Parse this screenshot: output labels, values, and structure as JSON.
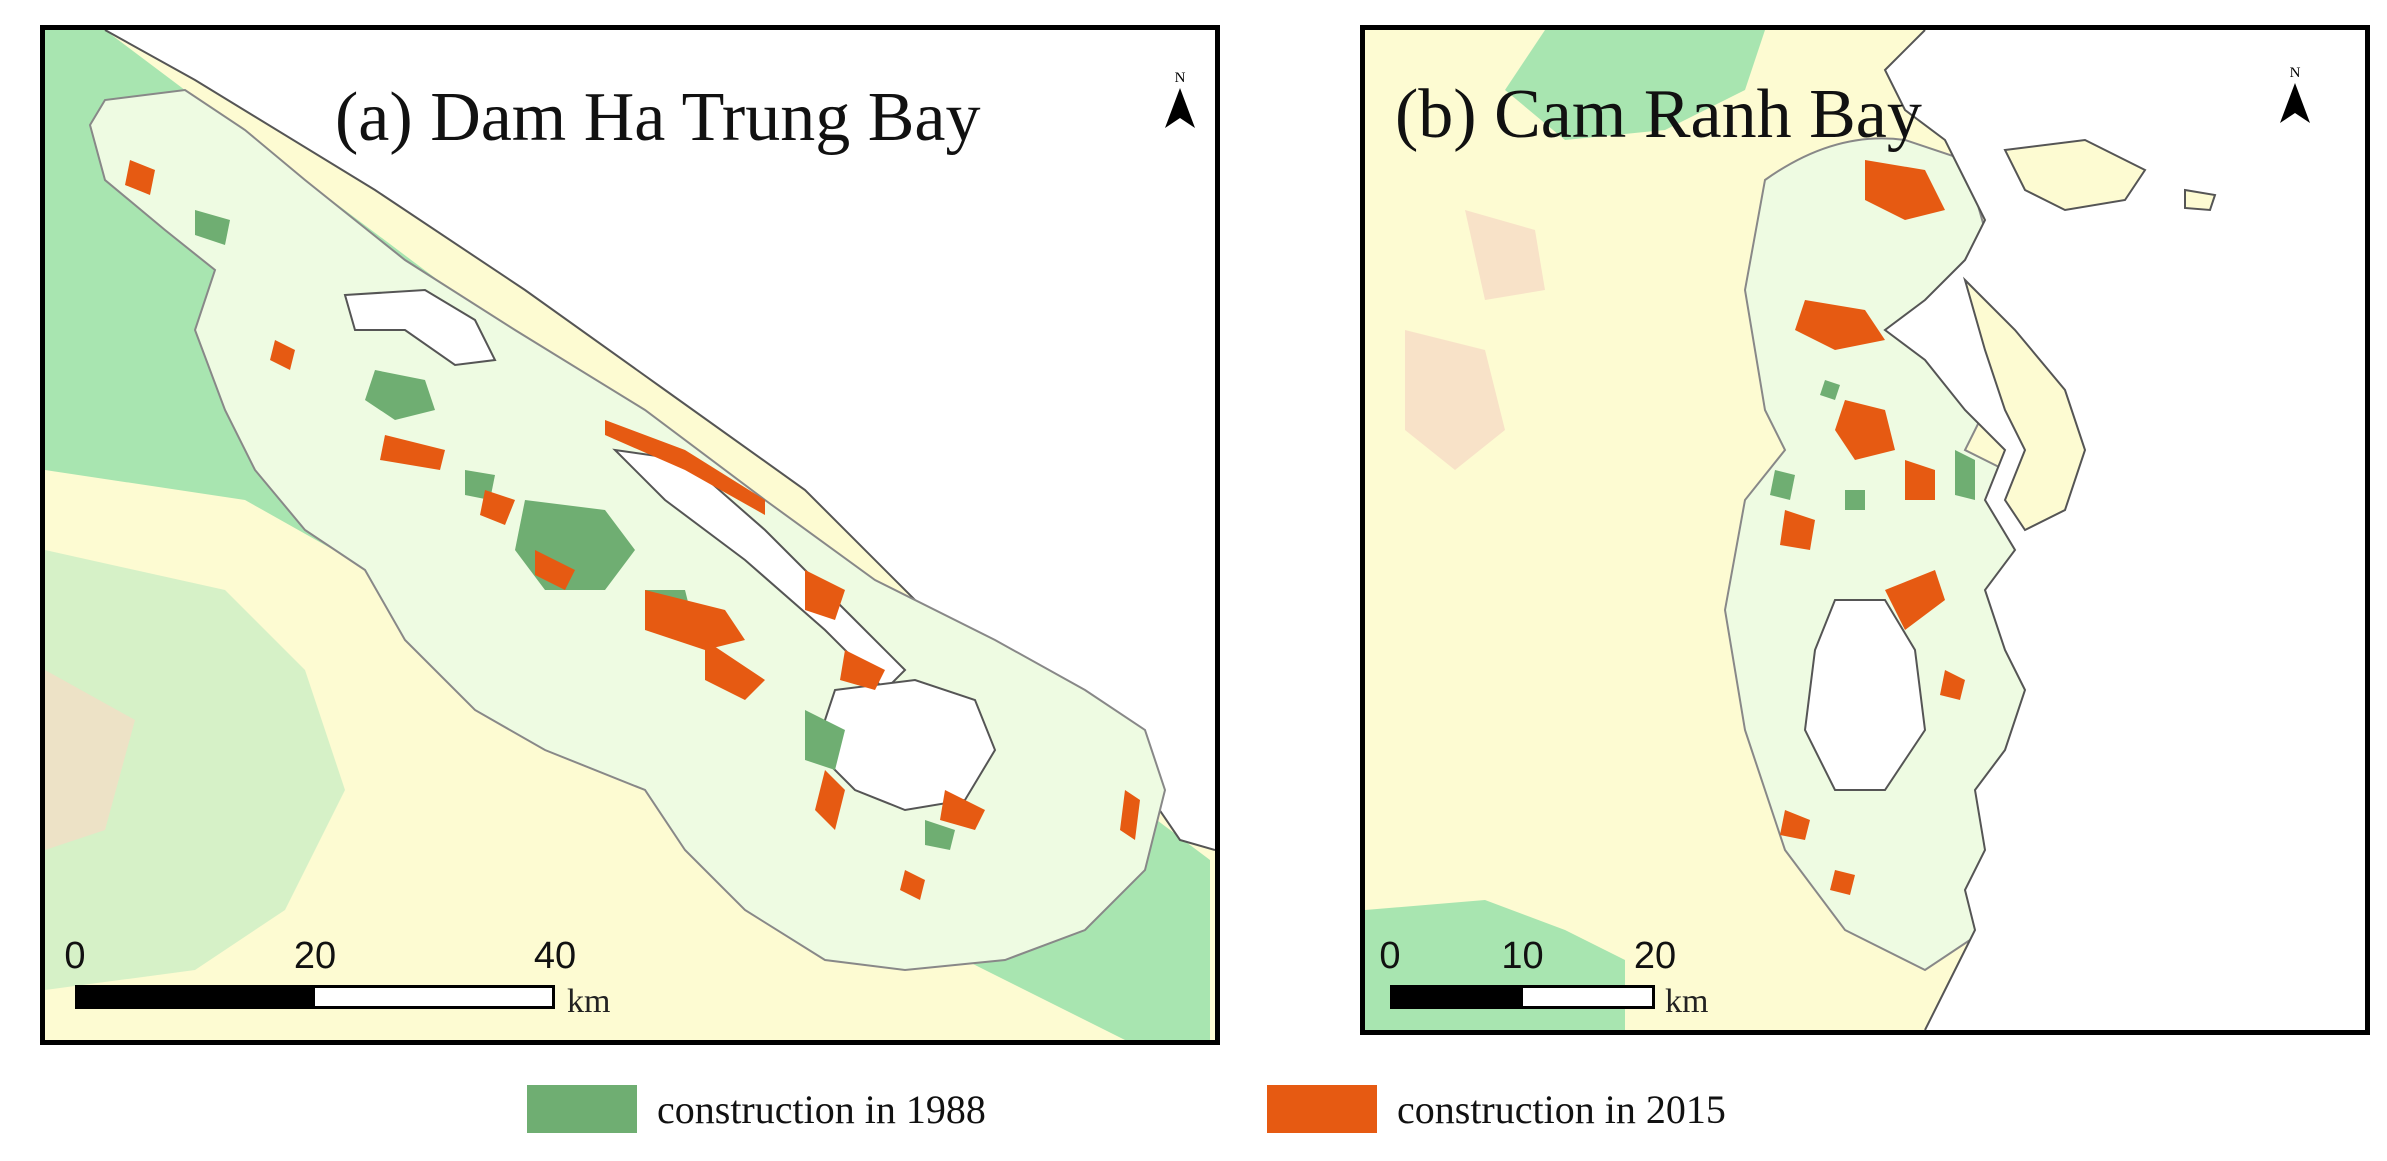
{
  "colors": {
    "land_yellow": "#fdfbd2",
    "land_green": "#a8e5b0",
    "land_pink": "#f6dcc6",
    "land_pale_yellow": "#fcf5c6",
    "buffer_fill": "#eefbe2",
    "construction_1988": "#6fae72",
    "construction_2015": "#e65a12",
    "water": "#ffffff",
    "coast": "#555555"
  },
  "panels": [
    {
      "title": "(a) Dam Ha Trung Bay",
      "north_label": "N",
      "north_icon": "north-arrow-icon",
      "scale": {
        "ticks": [
          "0",
          "20",
          "40"
        ],
        "unit": "km"
      }
    },
    {
      "title": "(b) Cam Ranh Bay",
      "north_label": "N",
      "north_icon": "north-arrow-icon",
      "scale": {
        "ticks": [
          "0",
          "10",
          "20"
        ],
        "unit": "km"
      }
    }
  ],
  "legend": [
    {
      "label": "construction in 1988",
      "color": "#6fae72"
    },
    {
      "label": "construction in 2015",
      "color": "#e65a12"
    }
  ]
}
